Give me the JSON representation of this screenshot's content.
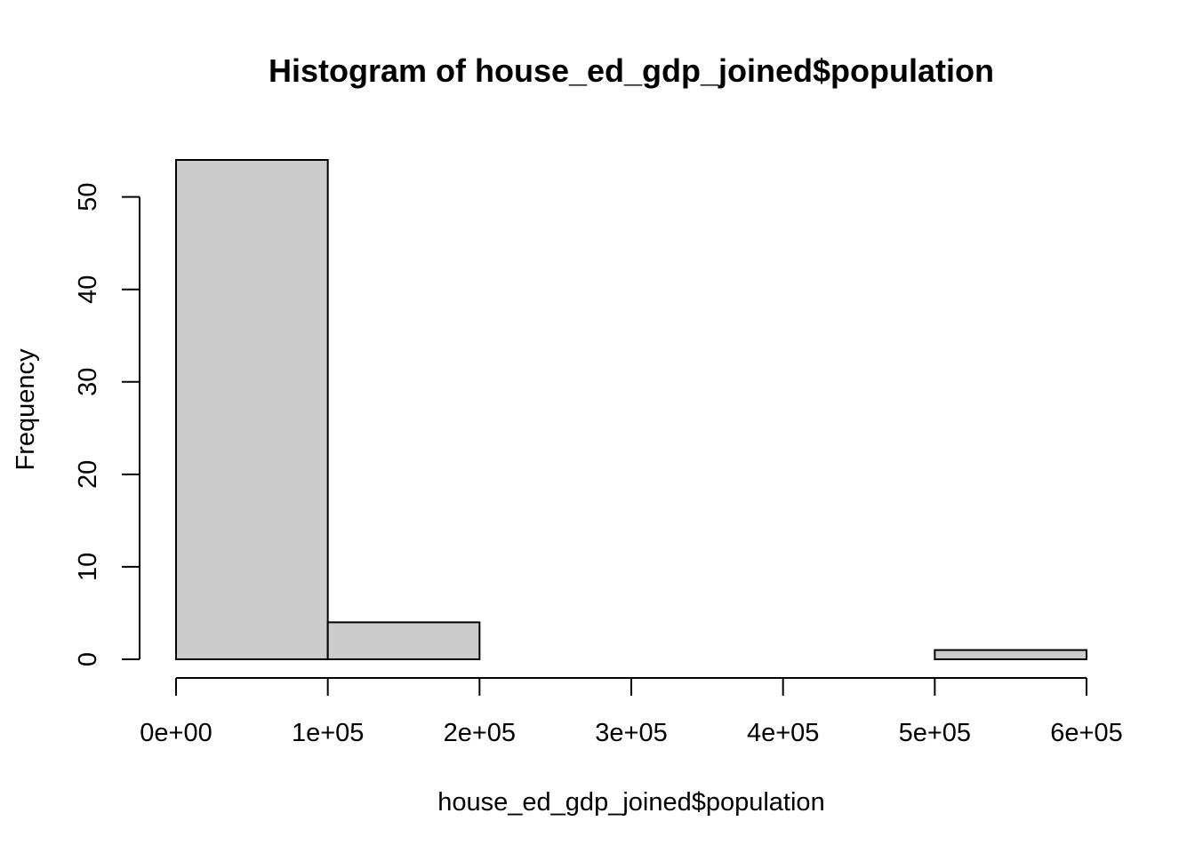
{
  "chart_data": {
    "type": "bar",
    "title": "Histogram of house_ed_gdp_joined$population",
    "xlabel": "house_ed_gdp_joined$population",
    "ylabel": "Frequency",
    "bins": [
      {
        "from": 0,
        "to": 100000,
        "count": 54
      },
      {
        "from": 100000,
        "to": 200000,
        "count": 4
      },
      {
        "from": 200000,
        "to": 300000,
        "count": 0
      },
      {
        "from": 300000,
        "to": 400000,
        "count": 0
      },
      {
        "from": 400000,
        "to": 500000,
        "count": 0
      },
      {
        "from": 500000,
        "to": 600000,
        "count": 1
      }
    ],
    "xlim": [
      0,
      600000
    ],
    "ylim": [
      0,
      54
    ],
    "x_ticks": [
      {
        "value": 0,
        "label": "0e+00"
      },
      {
        "value": 100000,
        "label": "1e+05"
      },
      {
        "value": 200000,
        "label": "2e+05"
      },
      {
        "value": 300000,
        "label": "3e+05"
      },
      {
        "value": 400000,
        "label": "4e+05"
      },
      {
        "value": 500000,
        "label": "5e+05"
      },
      {
        "value": 600000,
        "label": "6e+05"
      }
    ],
    "y_ticks": [
      {
        "value": 0,
        "label": "0"
      },
      {
        "value": 10,
        "label": "10"
      },
      {
        "value": 20,
        "label": "20"
      },
      {
        "value": 30,
        "label": "30"
      },
      {
        "value": 40,
        "label": "40"
      },
      {
        "value": 50,
        "label": "50"
      }
    ],
    "grid": false,
    "colors": {
      "bar_fill": "#cccccc",
      "bar_stroke": "#000000",
      "background": "#ffffff"
    }
  }
}
